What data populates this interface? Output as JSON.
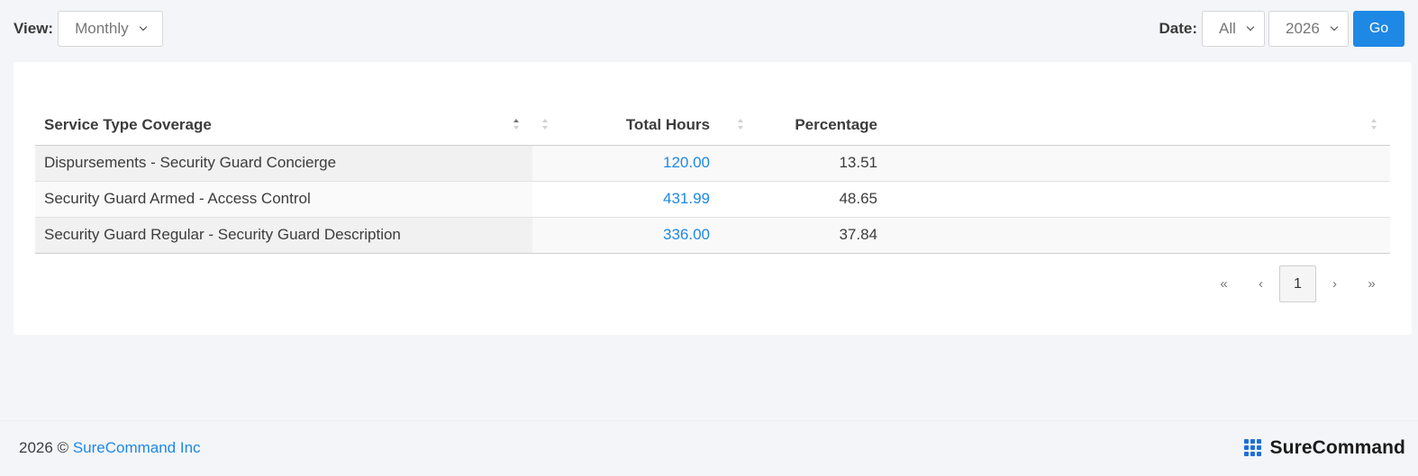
{
  "toolbar": {
    "view_label": "View:",
    "view_value": "Monthly",
    "date_label": "Date:",
    "date_value": "All",
    "year_value": "2026",
    "go_label": "Go"
  },
  "table": {
    "columns": [
      "Service Type Coverage",
      "",
      "Total Hours",
      "Percentage",
      ""
    ],
    "rows": [
      {
        "service": "Dispursements - Security Guard Concierge",
        "hours": "120.00",
        "percentage": "13.51"
      },
      {
        "service": "Security Guard Armed - Access Control",
        "hours": "431.99",
        "percentage": "48.65"
      },
      {
        "service": "Security Guard Regular - Security Guard Description",
        "hours": "336.00",
        "percentage": "37.84"
      }
    ]
  },
  "pagination": {
    "first": "«",
    "prev": "‹",
    "current": "1",
    "next": "›",
    "last": "»"
  },
  "footer": {
    "copyright": "2026 ©",
    "company": "SureCommand Inc",
    "brand": "SureCommand"
  },
  "colors": {
    "accent": "#1e88e5",
    "background": "#f4f5f8"
  }
}
